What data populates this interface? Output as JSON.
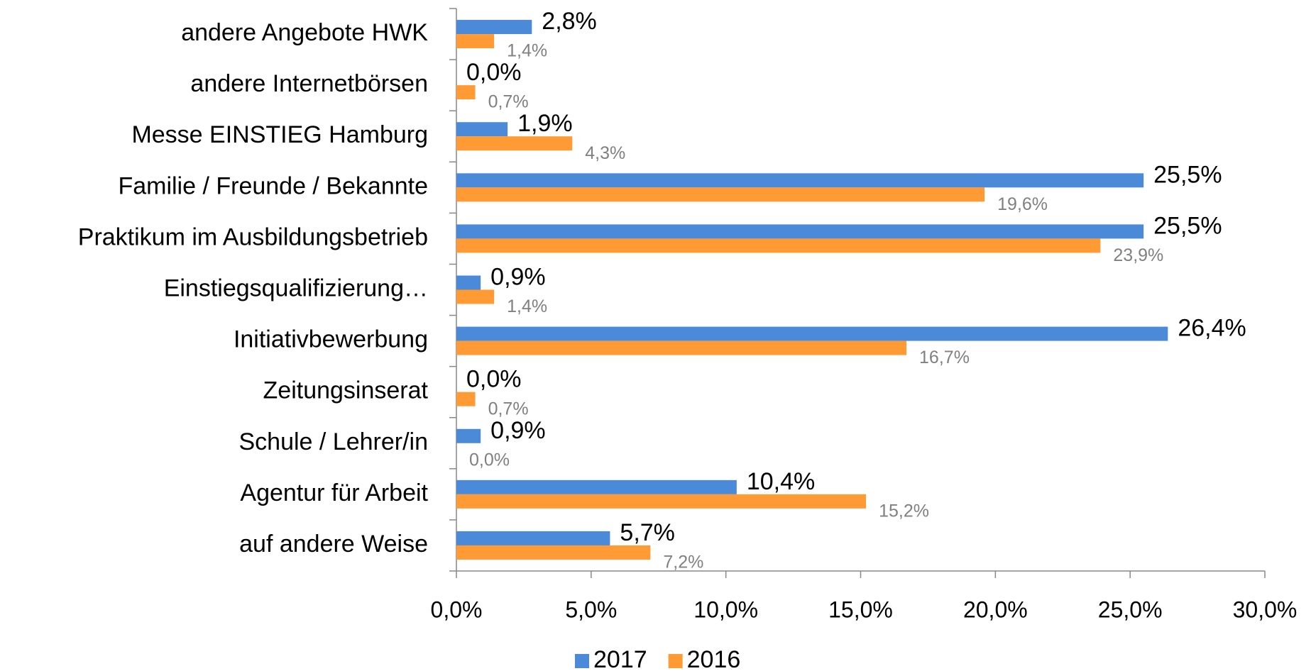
{
  "chart_data": {
    "type": "barh",
    "categories": [
      "andere Angebote HWK",
      "andere Internetbörsen",
      "Messe EINSTIEG Hamburg",
      "Familie / Freunde / Bekannte",
      "Praktikum im Ausbildungsbetrieb",
      "Einstiegsqualifizierung…",
      "Initiativbewerbung",
      "Zeitungsinserat",
      "Schule / Lehrer/in",
      "Agentur für Arbeit",
      "auf andere Weise"
    ],
    "series": [
      {
        "name": "2017",
        "color": "#4a8ad8",
        "values": [
          2.8,
          0.0,
          1.9,
          25.5,
          25.5,
          0.9,
          26.4,
          0.0,
          0.9,
          10.4,
          5.7
        ],
        "value_labels": [
          "2,8%",
          "0,0%",
          "1,9%",
          "25,5%",
          "25,5%",
          "0,9%",
          "26,4%",
          "0,0%",
          "0,9%",
          "10,4%",
          "5,7%"
        ]
      },
      {
        "name": "2016",
        "color": "#ff9a35",
        "values": [
          1.4,
          0.7,
          4.3,
          19.6,
          23.9,
          1.4,
          16.7,
          0.7,
          0.0,
          15.2,
          7.2
        ],
        "value_labels": [
          "1,4%",
          "0,7%",
          "4,3%",
          "19,6%",
          "23,9%",
          "1,4%",
          "16,7%",
          "0,7%",
          "0,0%",
          "15,2%",
          "7,2%"
        ]
      }
    ],
    "xlim": [
      0,
      30
    ],
    "xticks": [
      {
        "value": 0,
        "label": "0,0%"
      },
      {
        "value": 5,
        "label": "5,0%"
      },
      {
        "value": 10,
        "label": "10,0%"
      },
      {
        "value": 15,
        "label": "15,0%"
      },
      {
        "value": 20,
        "label": "20,0%"
      },
      {
        "value": 25,
        "label": "25,0%"
      },
      {
        "value": 30,
        "label": "30,0%"
      }
    ],
    "legend": "bottom"
  }
}
